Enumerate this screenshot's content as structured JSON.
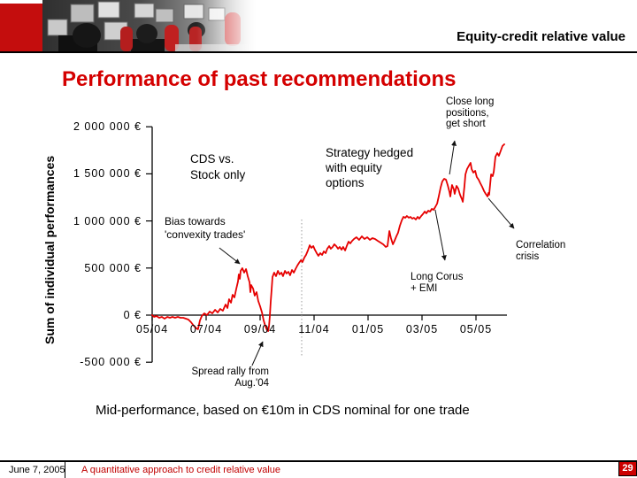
{
  "slide": {
    "header": {
      "title": "Equity-credit relative value"
    },
    "title": "Performance of past recommendations",
    "caption": "Mid-performance, based on €10m in CDS nominal for one trade",
    "footer": {
      "date": "June 7, 2005",
      "subtitle": "A quantitative approach to credit relative value",
      "page": "29"
    }
  },
  "colors": {
    "brand_red": "#c40d0d",
    "title_red": "#d40000",
    "line_red": "#e60000",
    "footer_red": "#c00000",
    "divider_gray": "#999999"
  },
  "chart_data": {
    "type": "line",
    "title": "Performance of past recommendations",
    "xlabel": "",
    "ylabel": "Sum of individual performances",
    "value_unit": "kEUR",
    "x_unit": "months after May 2004",
    "xlim": [
      0,
      13.2
    ],
    "ylim": [
      -500,
      2000
    ],
    "grid": false,
    "legend": "none",
    "divider_month": 5.54,
    "y_ticks": [
      {
        "v": 2000,
        "label": "2 000 000 €"
      },
      {
        "v": 1500,
        "label": "1 500 000 €"
      },
      {
        "v": 1000,
        "label": "1 000 000 €"
      },
      {
        "v": 500,
        "label": "500 000 €"
      },
      {
        "v": 0,
        "label": "0 €"
      },
      {
        "v": -500,
        "label": "-500 000 €"
      }
    ],
    "x_ticks": [
      {
        "m": 0,
        "label": "05/04"
      },
      {
        "m": 2,
        "label": "07/04"
      },
      {
        "m": 4,
        "label": "09/04"
      },
      {
        "m": 6,
        "label": "11/04"
      },
      {
        "m": 8,
        "label": "01/05"
      },
      {
        "m": 10,
        "label": "03/05"
      },
      {
        "m": 12,
        "label": "05/05"
      }
    ],
    "series": [
      {
        "name": "Sum of individual performances",
        "color": "#e60000",
        "points": [
          [
            0,
            0
          ],
          [
            0.07,
            -19
          ],
          [
            0.16,
            -9
          ],
          [
            0.26,
            -28
          ],
          [
            0.36,
            -19
          ],
          [
            0.46,
            -38
          ],
          [
            0.56,
            -19
          ],
          [
            0.66,
            -28
          ],
          [
            0.75,
            -19
          ],
          [
            0.85,
            -28
          ],
          [
            0.95,
            -19
          ],
          [
            1.05,
            -28
          ],
          [
            1.15,
            -28
          ],
          [
            1.25,
            -38
          ],
          [
            1.34,
            -47
          ],
          [
            1.44,
            -75
          ],
          [
            1.54,
            -113
          ],
          [
            1.64,
            -141
          ],
          [
            1.7,
            -150
          ],
          [
            1.77,
            -56
          ],
          [
            1.84,
            -9
          ],
          [
            1.93,
            19
          ],
          [
            2.03,
            0
          ],
          [
            2.13,
            38
          ],
          [
            2.23,
            19
          ],
          [
            2.33,
            56
          ],
          [
            2.43,
            28
          ],
          [
            2.52,
            66
          ],
          [
            2.62,
            47
          ],
          [
            2.72,
            113
          ],
          [
            2.79,
            75
          ],
          [
            2.85,
            169
          ],
          [
            2.92,
            132
          ],
          [
            2.98,
            216
          ],
          [
            3.05,
            188
          ],
          [
            3.11,
            273
          ],
          [
            3.18,
            357
          ],
          [
            3.21,
            432
          ],
          [
            3.25,
            385
          ],
          [
            3.28,
            470
          ],
          [
            3.34,
            498
          ],
          [
            3.41,
            451
          ],
          [
            3.48,
            489
          ],
          [
            3.54,
            414
          ],
          [
            3.61,
            348
          ],
          [
            3.64,
            244
          ],
          [
            3.67,
            320
          ],
          [
            3.74,
            282
          ],
          [
            3.8,
            207
          ],
          [
            3.87,
            244
          ],
          [
            3.93,
            150
          ],
          [
            4,
            94
          ],
          [
            4.07,
            28
          ],
          [
            4.13,
            -56
          ],
          [
            4.2,
            -122
          ],
          [
            4.26,
            -160
          ],
          [
            4.3,
            -169
          ],
          [
            4.33,
            -113
          ],
          [
            4.36,
            -9
          ],
          [
            4.39,
            132
          ],
          [
            4.43,
            282
          ],
          [
            4.46,
            404
          ],
          [
            4.52,
            451
          ],
          [
            4.59,
            414
          ],
          [
            4.66,
            470
          ],
          [
            4.72,
            432
          ],
          [
            4.79,
            451
          ],
          [
            4.85,
            414
          ],
          [
            4.92,
            470
          ],
          [
            4.98,
            442
          ],
          [
            5.05,
            460
          ],
          [
            5.11,
            423
          ],
          [
            5.18,
            479
          ],
          [
            5.25,
            451
          ],
          [
            5.31,
            489
          ],
          [
            5.38,
            526
          ],
          [
            5.44,
            554
          ],
          [
            5.51,
            583
          ],
          [
            5.57,
            564
          ],
          [
            5.64,
            611
          ],
          [
            5.7,
            639
          ],
          [
            5.77,
            686
          ],
          [
            5.84,
            742
          ],
          [
            5.9,
            714
          ],
          [
            5.97,
            733
          ],
          [
            6.03,
            695
          ],
          [
            6.1,
            658
          ],
          [
            6.16,
            630
          ],
          [
            6.23,
            658
          ],
          [
            6.3,
            639
          ],
          [
            6.36,
            677
          ],
          [
            6.43,
            658
          ],
          [
            6.49,
            705
          ],
          [
            6.56,
            733
          ],
          [
            6.62,
            705
          ],
          [
            6.69,
            724
          ],
          [
            6.75,
            752
          ],
          [
            6.82,
            733
          ],
          [
            6.89,
            705
          ],
          [
            6.95,
            724
          ],
          [
            7.02,
            695
          ],
          [
            7.08,
            724
          ],
          [
            7.15,
            686
          ],
          [
            7.21,
            733
          ],
          [
            7.28,
            780
          ],
          [
            7.34,
            761
          ],
          [
            7.41,
            789
          ],
          [
            7.48,
            808
          ],
          [
            7.57,
            827
          ],
          [
            7.67,
            799
          ],
          [
            7.77,
            836
          ],
          [
            7.87,
            808
          ],
          [
            7.97,
            827
          ],
          [
            8.07,
            799
          ],
          [
            8.16,
            818
          ],
          [
            8.26,
            808
          ],
          [
            8.36,
            789
          ],
          [
            8.46,
            771
          ],
          [
            8.56,
            752
          ],
          [
            8.66,
            724
          ],
          [
            8.72,
            733
          ],
          [
            8.79,
            893
          ],
          [
            8.85,
            818
          ],
          [
            8.92,
            752
          ],
          [
            8.98,
            789
          ],
          [
            9.05,
            836
          ],
          [
            9.11,
            874
          ],
          [
            9.18,
            949
          ],
          [
            9.25,
            1006
          ],
          [
            9.31,
            1043
          ],
          [
            9.38,
            1034
          ],
          [
            9.44,
            1053
          ],
          [
            9.51,
            1034
          ],
          [
            9.57,
            1043
          ],
          [
            9.64,
            1024
          ],
          [
            9.7,
            1034
          ],
          [
            9.77,
            1015
          ],
          [
            9.84,
            1043
          ],
          [
            9.9,
            1024
          ],
          [
            9.97,
            1053
          ],
          [
            10.03,
            1071
          ],
          [
            10.1,
            1100
          ],
          [
            10.16,
            1081
          ],
          [
            10.23,
            1109
          ],
          [
            10.3,
            1100
          ],
          [
            10.36,
            1128
          ],
          [
            10.43,
            1118
          ],
          [
            10.49,
            1147
          ],
          [
            10.56,
            1184
          ],
          [
            10.62,
            1259
          ],
          [
            10.69,
            1353
          ],
          [
            10.75,
            1419
          ],
          [
            10.82,
            1447
          ],
          [
            10.89,
            1438
          ],
          [
            10.95,
            1382
          ],
          [
            11.02,
            1306
          ],
          [
            11.05,
            1259
          ],
          [
            11.11,
            1382
          ],
          [
            11.18,
            1335
          ],
          [
            11.21,
            1288
          ],
          [
            11.28,
            1372
          ],
          [
            11.34,
            1344
          ],
          [
            11.41,
            1278
          ],
          [
            11.48,
            1231
          ],
          [
            11.51,
            1203
          ],
          [
            11.57,
            1363
          ],
          [
            11.61,
            1494
          ],
          [
            11.67,
            1551
          ],
          [
            11.74,
            1588
          ],
          [
            11.8,
            1617
          ],
          [
            11.84,
            1551
          ],
          [
            11.9,
            1513
          ],
          [
            11.97,
            1532
          ],
          [
            12.03,
            1466
          ],
          [
            12.1,
            1438
          ],
          [
            12.16,
            1400
          ],
          [
            12.23,
            1363
          ],
          [
            12.3,
            1316
          ],
          [
            12.36,
            1288
          ],
          [
            12.43,
            1259
          ],
          [
            12.46,
            1297
          ],
          [
            12.49,
            1278
          ],
          [
            12.56,
            1494
          ],
          [
            12.62,
            1476
          ],
          [
            12.66,
            1523
          ],
          [
            12.72,
            1682
          ],
          [
            12.79,
            1720
          ],
          [
            12.85,
            1692
          ],
          [
            12.92,
            1748
          ],
          [
            12.98,
            1795
          ],
          [
            13.05,
            1814
          ]
        ]
      }
    ],
    "annotations": {
      "cds": {
        "line1": "CDS vs.",
        "line2": "Stock only"
      },
      "strategy": {
        "line1": "Strategy hedged",
        "line2": "with equity",
        "line3": "options"
      },
      "close": {
        "line1": "Close long",
        "line2": "positions,",
        "line3": "get short"
      },
      "bias": {
        "line1": "Bias towards",
        "line2": "'convexity trades'"
      },
      "corus": {
        "line1": "Long Corus",
        "line2": "+ EMI"
      },
      "corr": {
        "line1": "Correlation",
        "line2": "crisis"
      },
      "spread": {
        "line1": "Spread rally from",
        "line2": "Aug.'04"
      }
    },
    "arrows": [
      {
        "name": "bias-arrow",
        "from": [
          2.49,
          714
        ],
        "to": [
          3.25,
          545
        ]
      },
      {
        "name": "close-long-arrow",
        "from": [
          11.02,
          1494
        ],
        "to": [
          11.21,
          1851
        ]
      },
      {
        "name": "correlation-arrow",
        "from": [
          12.46,
          1240
        ],
        "to": [
          13.41,
          921
        ]
      },
      {
        "name": "long-corus-arrow",
        "from": [
          10.49,
          1118
        ],
        "to": [
          10.85,
          583
        ]
      },
      {
        "name": "spread-rally-arrow",
        "from": [
          3.7,
          -536
        ],
        "to": [
          4.1,
          -282
        ]
      }
    ]
  }
}
